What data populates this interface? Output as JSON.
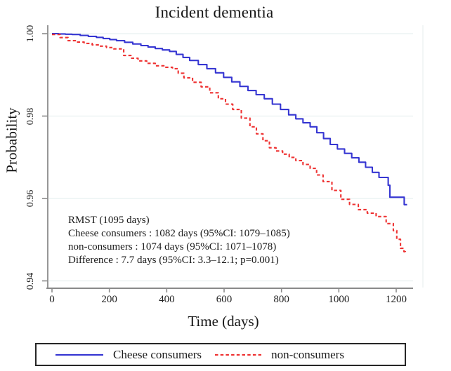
{
  "title": "Incident dementia",
  "y_axis": {
    "label": "Probability",
    "tick_values": [
      1.0,
      0.98,
      0.96,
      0.94
    ],
    "tick_labels": [
      "1.00",
      "0.98",
      "0.96",
      "0.94"
    ]
  },
  "x_axis": {
    "label": "Time (days)",
    "tick_values": [
      0,
      200,
      400,
      600,
      800,
      1000,
      1200
    ],
    "tick_labels": [
      "0",
      "200",
      "400",
      "600",
      "800",
      "1000",
      "1200"
    ]
  },
  "annotation": {
    "lines": [
      "RMST (1095 days)",
      "Cheese consumers : 1082 days (95%CI: 1079–1085)",
      "non-consumers : 1074 days (95%CI: 1071–1078)",
      "Difference : 7.7 days (95%CI: 3.3–12.1; p=0.001)"
    ]
  },
  "legend": {
    "items": [
      {
        "label": "Cheese consumers",
        "color": "#3636d2",
        "line_style": "solid"
      },
      {
        "label": "non-consumers",
        "color": "#ee3232",
        "line_style": "dashed"
      }
    ]
  },
  "colors": {
    "cheese_consumers": "#3636d2",
    "non_consumers": "#ee3232",
    "gridline": "#e8f0f0",
    "axis": "#8a8a8a",
    "plot_border": "#edf3f3"
  },
  "chart_data": {
    "type": "line",
    "subtype": "kaplan-meier-step",
    "title": "Incident dementia",
    "xlabel": "Time (days)",
    "ylabel": "Probability",
    "xlim": [
      0,
      1260
    ],
    "ylim": [
      0.94,
      1.003
    ],
    "x_ticks": [
      0,
      200,
      400,
      600,
      800,
      1000,
      1200
    ],
    "y_ticks": [
      0.94,
      0.96,
      0.98,
      1.0
    ],
    "grid": "horizontal-only",
    "legend_position": "bottom-box",
    "series": [
      {
        "name": "Cheese consumers",
        "color": "#3636d2",
        "style": "solid",
        "points": [
          [
            0,
            1.0
          ],
          [
            70,
            0.9998
          ],
          [
            155,
            0.9991
          ],
          [
            225,
            0.9983
          ],
          [
            310,
            0.9971
          ],
          [
            410,
            0.9957
          ],
          [
            480,
            0.9935
          ],
          [
            570,
            0.9905
          ],
          [
            655,
            0.9872
          ],
          [
            740,
            0.9842
          ],
          [
            825,
            0.9803
          ],
          [
            900,
            0.9774
          ],
          [
            970,
            0.9731
          ],
          [
            1070,
            0.9688
          ],
          [
            1140,
            0.9651
          ],
          [
            1172,
            0.9632
          ],
          [
            1178,
            0.9603
          ],
          [
            1225,
            0.9603
          ],
          [
            1228,
            0.9585
          ],
          [
            1238,
            0.9585
          ]
        ]
      },
      {
        "name": "non-consumers",
        "color": "#ee3232",
        "style": "dashed",
        "points": [
          [
            0,
            0.9998
          ],
          [
            56,
            0.9983
          ],
          [
            140,
            0.9973
          ],
          [
            215,
            0.9963
          ],
          [
            250,
            0.9947
          ],
          [
            300,
            0.9934
          ],
          [
            360,
            0.9922
          ],
          [
            420,
            0.9915
          ],
          [
            460,
            0.9893
          ],
          [
            520,
            0.9871
          ],
          [
            580,
            0.9842
          ],
          [
            630,
            0.9816
          ],
          [
            690,
            0.9774
          ],
          [
            758,
            0.9723
          ],
          [
            850,
            0.9692
          ],
          [
            900,
            0.9673
          ],
          [
            945,
            0.9641
          ],
          [
            1007,
            0.9598
          ],
          [
            1068,
            0.9573
          ],
          [
            1130,
            0.9556
          ],
          [
            1165,
            0.9539
          ],
          [
            1190,
            0.9522
          ],
          [
            1202,
            0.9501
          ],
          [
            1215,
            0.9479
          ],
          [
            1227,
            0.9471
          ],
          [
            1232,
            0.9467
          ]
        ]
      }
    ],
    "rmst_annotation": {
      "horizon_days": 1095,
      "cheese_consumers_days": 1082,
      "cheese_consumers_ci": "1079–1085",
      "non_consumers_days": 1074,
      "non_consumers_ci": "1071–1078",
      "difference_days": 7.7,
      "difference_ci": "3.3–12.1",
      "p_value": "p=0.001"
    }
  }
}
